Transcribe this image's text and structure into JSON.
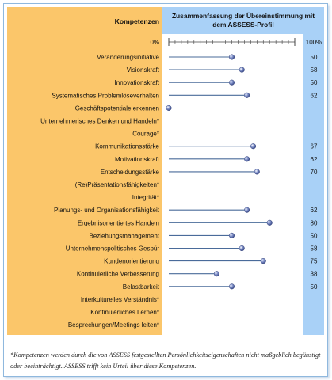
{
  "chart_data": {
    "type": "dot-bar",
    "header_left": "Kompetenzen",
    "header_right": "Zusammenfassung der Übereinstimmung mit dem ASSESS-Profil",
    "axis_min_label": "0%",
    "axis_max_label": "100%",
    "xlim": [
      0,
      100
    ],
    "rows": [
      {
        "label": "Veränderungsinitiative",
        "value": 50,
        "value_label": "50"
      },
      {
        "label": "Visionskraft",
        "value": 58,
        "value_label": "58"
      },
      {
        "label": "Innovationskraft",
        "value": 50,
        "value_label": "50"
      },
      {
        "label": "Systematisches Problemlöseverhalten",
        "value": 62,
        "value_label": "62"
      },
      {
        "label": "Geschäftspotentiale erkennen",
        "value": 0,
        "value_label": ""
      },
      {
        "label": "Unternehmerisches Denken und Handeln*",
        "value": null,
        "value_label": ""
      },
      {
        "label": "Courage*",
        "value": null,
        "value_label": ""
      },
      {
        "label": "Kommunikationsstärke",
        "value": 67,
        "value_label": "67"
      },
      {
        "label": "Motivationskraft",
        "value": 62,
        "value_label": "62"
      },
      {
        "label": "Entscheidungsstärke",
        "value": 70,
        "value_label": "70"
      },
      {
        "label": "(Re)Präsentationsfähigkeiten*",
        "value": null,
        "value_label": ""
      },
      {
        "label": "Integrität*",
        "value": null,
        "value_label": ""
      },
      {
        "label": "Planungs- und Organisationsfähigkeit",
        "value": 62,
        "value_label": "62"
      },
      {
        "label": "Ergebnisorientiertes Handeln",
        "value": 80,
        "value_label": "80"
      },
      {
        "label": "Beziehungsmanagement",
        "value": 50,
        "value_label": "50"
      },
      {
        "label": "Unternehmenspolitisches Gespür",
        "value": 58,
        "value_label": "58"
      },
      {
        "label": "Kundenorientierung",
        "value": 75,
        "value_label": "75"
      },
      {
        "label": "Kontinuierliche Verbesserung",
        "value": 38,
        "value_label": "38"
      },
      {
        "label": "Belastbarkeit",
        "value": 50,
        "value_label": "50"
      },
      {
        "label": "Interkulturelles Verständnis*",
        "value": null,
        "value_label": ""
      },
      {
        "label": "Kontinuierliches Lernen*",
        "value": null,
        "value_label": ""
      },
      {
        "label": "Besprechungen/Meetings leiten*",
        "value": null,
        "value_label": ""
      }
    ],
    "colors": {
      "left_panel": "#fbc66a",
      "plot_area": "#ffffff",
      "header_right": "#a9d1f7",
      "value_column": "#a9d1f7",
      "dot": "#5e6fae",
      "line": "#4a6b9a"
    }
  },
  "footnote": "*Kompetenzen werden durch die von ASSESS festgestellten Persönlichkeitseigenschaften nicht maßgeblich begünstigt oder beeinträchtigt. ASSESS trifft kein Urteil über diese Kompetenzen."
}
